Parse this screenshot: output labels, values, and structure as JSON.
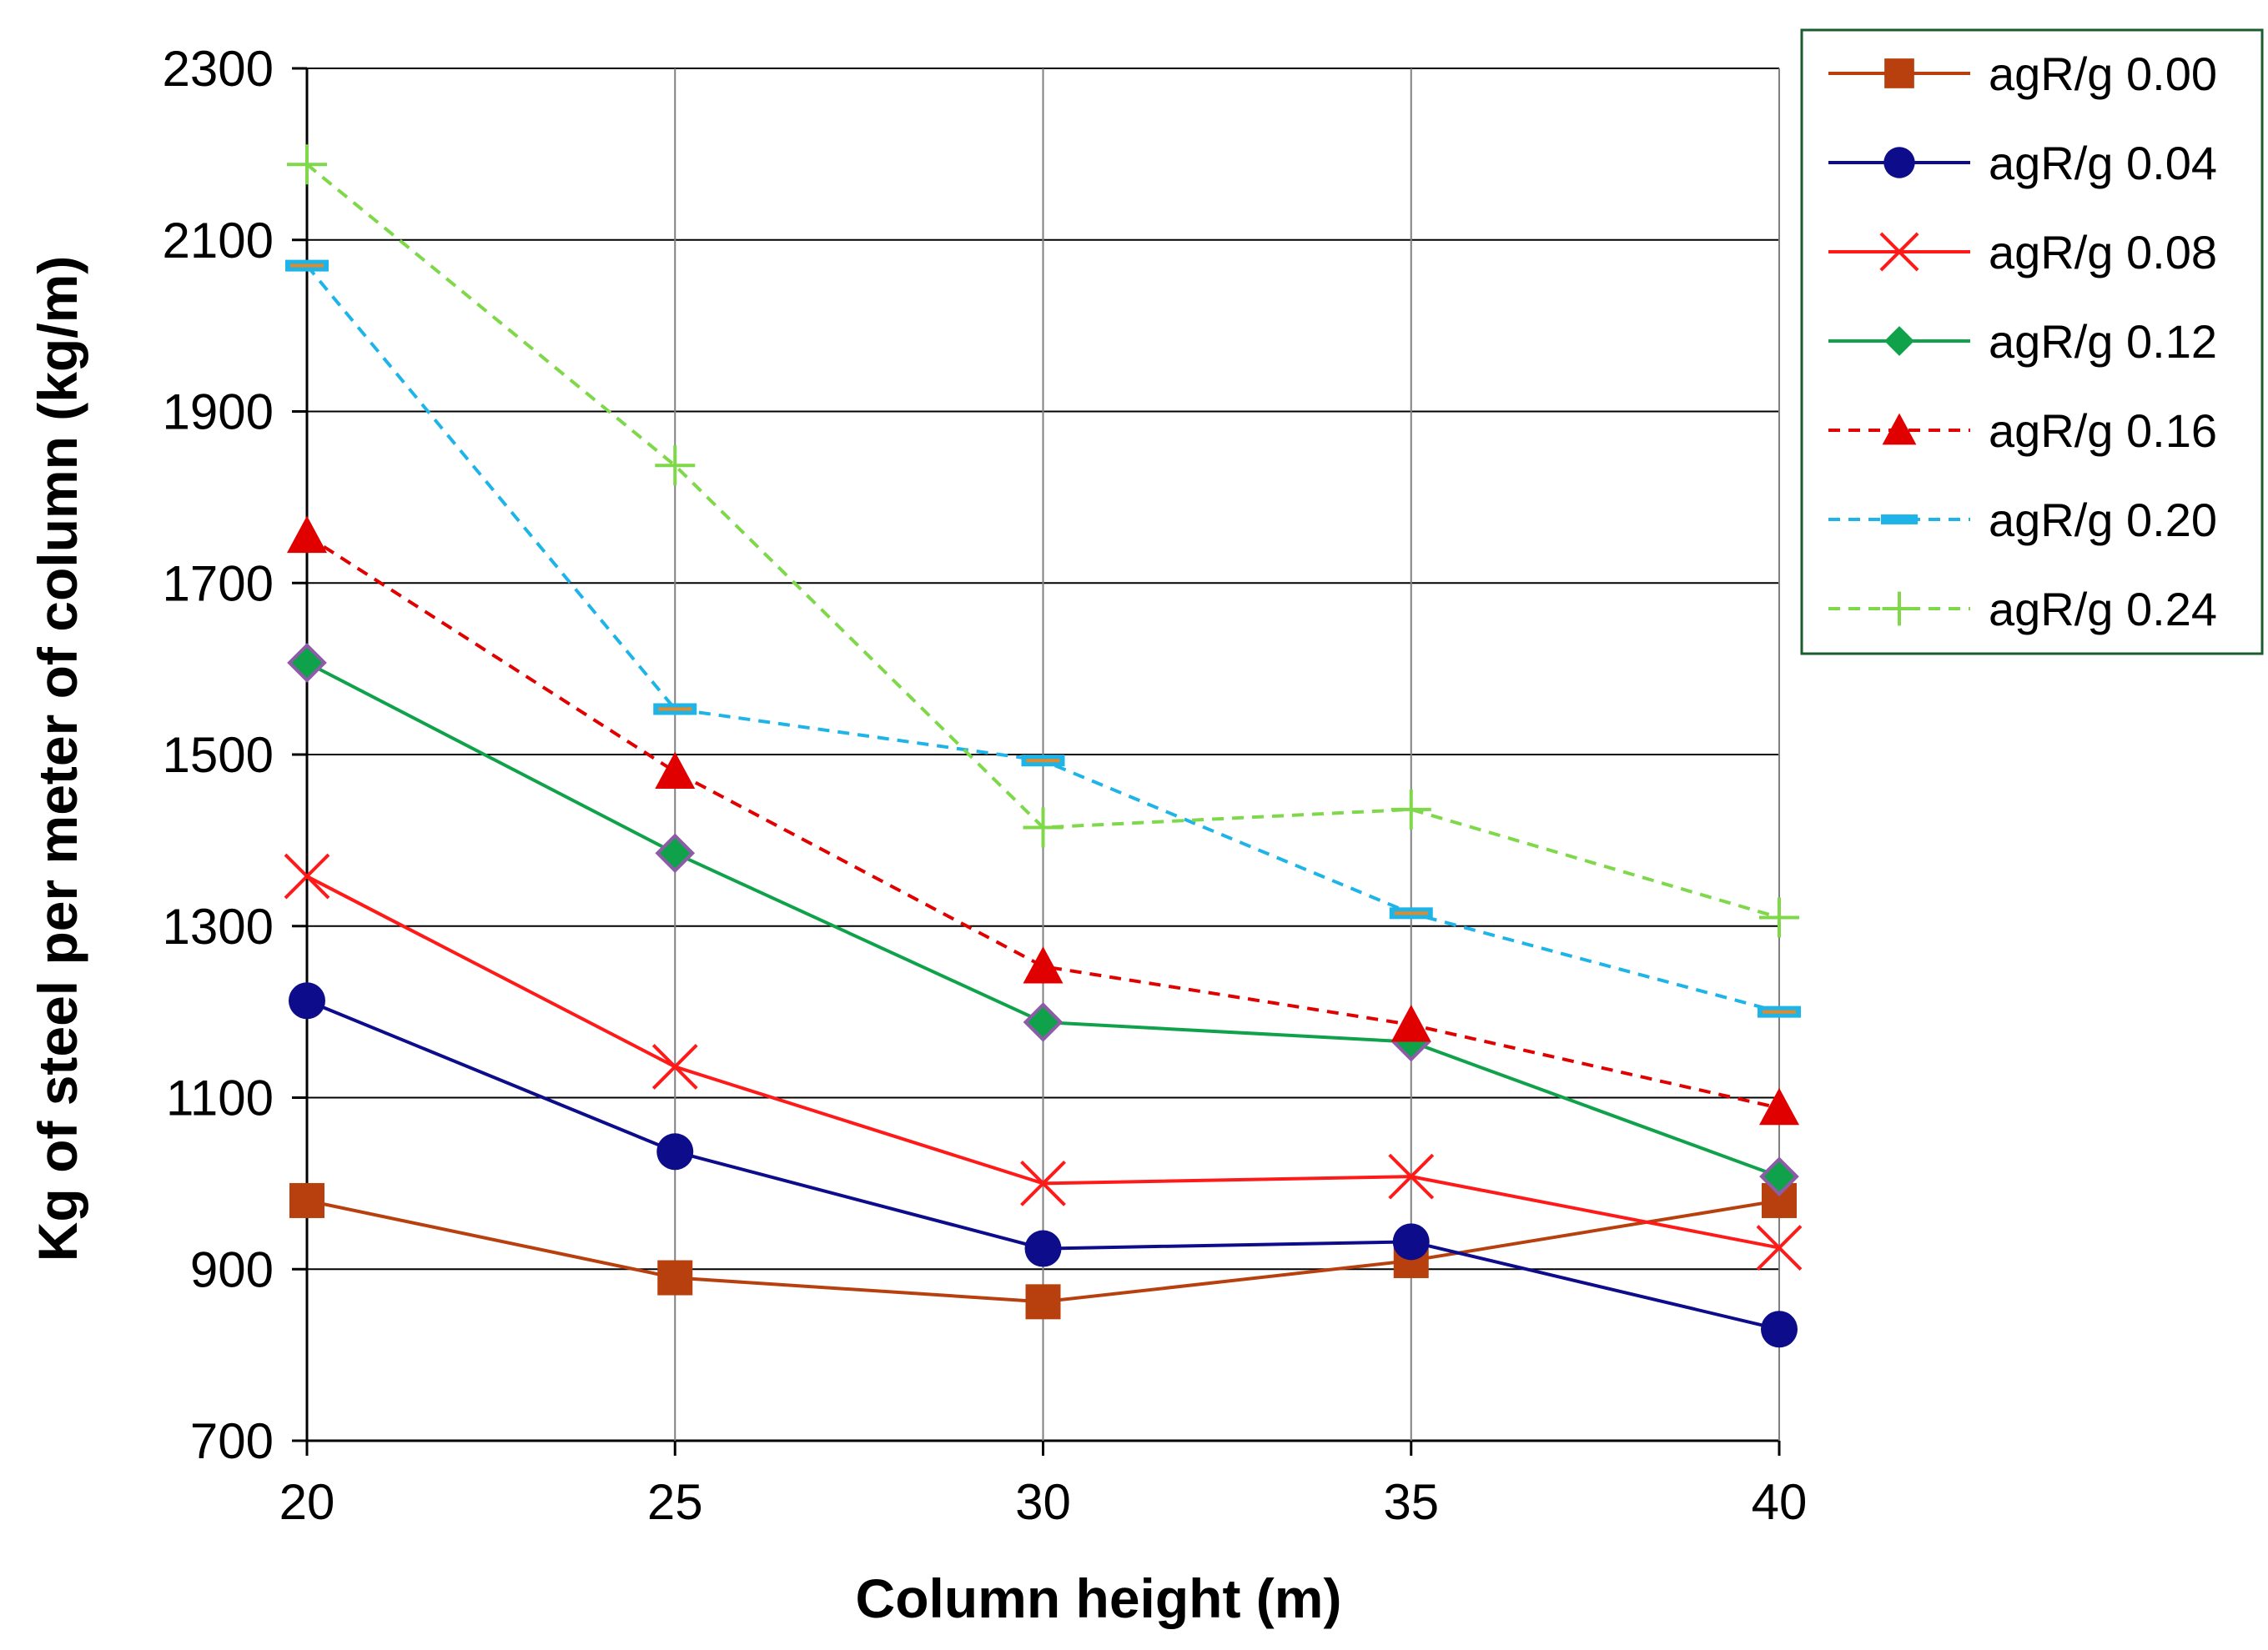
{
  "chart_data": {
    "type": "line",
    "title": "",
    "xlabel": "Column height (m)",
    "ylabel": "Kg of steel per  meter of column (kg/m)",
    "x": [
      20,
      25,
      30,
      35,
      40
    ],
    "xticks": [
      "20",
      "25",
      "30",
      "35",
      "40"
    ],
    "xlim": [
      20,
      40
    ],
    "ylim": [
      700,
      2300
    ],
    "yticks": [
      "700",
      "900",
      "1100",
      "1300",
      "1500",
      "1700",
      "1900",
      "2100",
      "2300"
    ],
    "grid": true,
    "legend_position": "top-right",
    "series": [
      {
        "name": "agR/g 0.00",
        "values": [
          980,
          890,
          862,
          910,
          980
        ],
        "color": "#B8400E",
        "dash": "solid",
        "marker": "square"
      },
      {
        "name": "agR/g 0.04",
        "values": [
          1213,
          1037,
          924,
          932,
          830
        ],
        "color": "#0D0D8C",
        "dash": "solid",
        "marker": "circle"
      },
      {
        "name": "agR/g 0.08",
        "values": [
          1358,
          1136,
          1000,
          1008,
          925
        ],
        "color": "#FF1A1A",
        "dash": "solid",
        "marker": "x"
      },
      {
        "name": "agR/g 0.12",
        "values": [
          1607,
          1385,
          1188,
          1165,
          1008
        ],
        "color": "#10A24A",
        "dash": "solid",
        "marker": "diamond"
      },
      {
        "name": "agR/g 0.16",
        "values": [
          1755,
          1480,
          1253,
          1185,
          1088
        ],
        "color": "#E00000",
        "dash": "dashed",
        "marker": "triangle"
      },
      {
        "name": "agR/g 0.20",
        "values": [
          2070,
          1553,
          1493,
          1315,
          1200
        ],
        "color": "#1FB4E8",
        "dash": "dashed",
        "marker": "dash"
      },
      {
        "name": "agR/g 0.24",
        "values": [
          2188,
          1837,
          1415,
          1436,
          1310
        ],
        "color": "#7ED84A",
        "dash": "dashed",
        "marker": "plus"
      }
    ]
  }
}
